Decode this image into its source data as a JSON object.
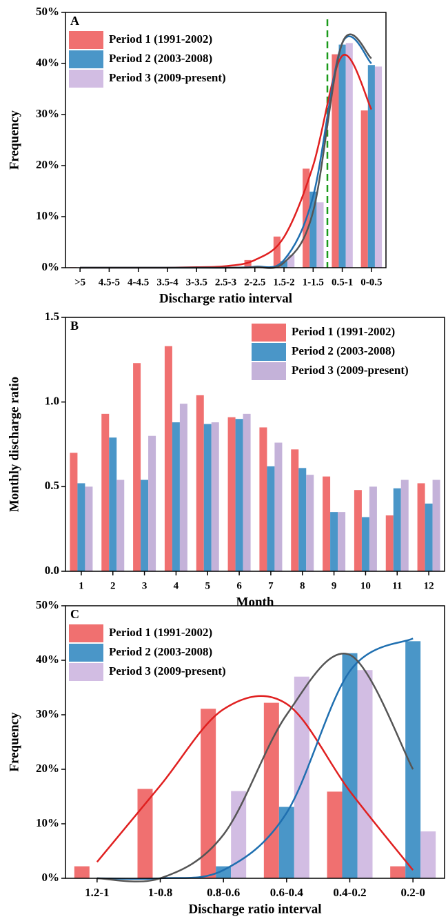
{
  "chart_data": [
    {
      "type": "bar",
      "panel_label": "A",
      "xlabel": "Discharge ratio interval",
      "ylabel": "Frequency",
      "legend": "upper left",
      "categories": [
        ">5",
        "4.5-5",
        "4-4.5",
        "3.5-4",
        "3-3.5",
        "2.5-3",
        "2-2.5",
        "1.5-2",
        "1-1.5",
        "0.5-1",
        "0-0.5"
      ],
      "series": [
        {
          "name": "Period 1 (1991-2002)",
          "color": "#f07070",
          "values": [
            0.1,
            0.1,
            0.1,
            0.1,
            0.1,
            0.2,
            1.5,
            6.1,
            19.4,
            41.8,
            30.8
          ]
        },
        {
          "name": "Period 2 (2003-2008)",
          "color": "#4a96c8",
          "values": [
            0,
            0,
            0,
            0,
            0,
            0,
            0,
            1.3,
            14.9,
            43.7,
            39.7
          ]
        },
        {
          "name": "Period 3 (2009-present)",
          "color": "#d2bde3",
          "values": [
            0,
            0,
            0,
            0,
            0,
            0,
            0,
            2.5,
            12.8,
            44,
            39.4
          ]
        }
      ],
      "fits": [
        {
          "color": "#e02020",
          "values": [
            0,
            0,
            0,
            0,
            0.1,
            0.3,
            1.5,
            6,
            20,
            41.5,
            31
          ]
        },
        {
          "color": "#1f6fb0",
          "values": [
            0,
            0,
            0,
            0,
            0,
            0,
            0.2,
            1.5,
            14,
            44,
            40
          ]
        },
        {
          "color": "#555555",
          "values": [
            0,
            0,
            0,
            0,
            0,
            0,
            0.1,
            1,
            11,
            44,
            41
          ]
        }
      ],
      "ylim": [
        0,
        50
      ],
      "yticks": [
        {
          "value": 0,
          "label": "0%"
        },
        {
          "value": 10,
          "label": "10%"
        },
        {
          "value": 20,
          "label": "20%"
        },
        {
          "value": 30,
          "label": "30%"
        },
        {
          "value": 40,
          "label": "40%"
        },
        {
          "value": 50,
          "label": "50%"
        }
      ]
    },
    {
      "type": "bar",
      "panel_label": "B",
      "xlabel": "Month",
      "ylabel": "Monthly discharge ratio",
      "legend": "upper right",
      "categories": [
        "1",
        "2",
        "3",
        "4",
        "5",
        "6",
        "7",
        "8",
        "9",
        "10",
        "11",
        "12"
      ],
      "series": [
        {
          "name": "Period 1 (1991-2002)",
          "color": "#f07070",
          "values": [
            0.7,
            0.93,
            1.23,
            1.33,
            1.04,
            0.91,
            0.85,
            0.72,
            0.56,
            0.48,
            0.33,
            0.52
          ]
        },
        {
          "name": "Period 2 (2003-2008)",
          "color": "#4a96c8",
          "values": [
            0.52,
            0.79,
            0.54,
            0.88,
            0.87,
            0.9,
            0.62,
            0.61,
            0.35,
            0.32,
            0.49,
            0.4
          ]
        },
        {
          "name": "Period 3 (2009-present)",
          "color": "#c4b2d9",
          "values": [
            0.5,
            0.54,
            0.8,
            0.99,
            0.88,
            0.93,
            0.76,
            0.57,
            0.35,
            0.5,
            0.54,
            0.54
          ]
        }
      ],
      "fits": [],
      "ylim": [
        0,
        1.5
      ],
      "yticks": [
        {
          "value": 0,
          "label": "0.0"
        },
        0.5,
        {
          "value": 1,
          "label": "1.0"
        },
        1.5
      ]
    },
    {
      "type": "bar",
      "panel_label": "C",
      "xlabel": "Discharge ratio interval",
      "ylabel": "Frequency",
      "legend": "upper left",
      "categories": [
        "1.2-1",
        "1-0.8",
        "0.8-0.6",
        "0.6-0.4",
        "0.4-0.2",
        "0.2-0"
      ],
      "series": [
        {
          "name": "Period 1 (1991-2002)",
          "color": "#f07070",
          "values": [
            2.2,
            16.4,
            31.1,
            32.2,
            15.9,
            2.2
          ]
        },
        {
          "name": "Period 2 (2003-2008)",
          "color": "#4a96c8",
          "values": [
            0,
            0,
            2.2,
            13.1,
            41.3,
            43.5
          ]
        },
        {
          "name": "Period 3 (2009-present)",
          "color": "#d2bde3",
          "values": [
            0,
            0,
            16,
            37,
            38.2,
            8.6
          ]
        }
      ],
      "fits": [
        {
          "color": "#e02020",
          "values": [
            3,
            17,
            31,
            32,
            16,
            1.5
          ]
        },
        {
          "color": "#1f6fb0",
          "values": [
            0,
            0,
            1.5,
            12,
            38,
            44
          ]
        },
        {
          "color": "#555555",
          "values": [
            0,
            0,
            8,
            30,
            41,
            20
          ]
        }
      ],
      "ylim": [
        0,
        50
      ],
      "yticks": [
        {
          "value": 0,
          "label": "0%"
        },
        {
          "value": 10,
          "label": "10%"
        },
        {
          "value": 20,
          "label": "20%"
        },
        {
          "value": 30,
          "label": "30%"
        },
        {
          "value": 40,
          "label": "40%"
        },
        {
          "value": 50,
          "label": "50%"
        }
      ]
    }
  ]
}
